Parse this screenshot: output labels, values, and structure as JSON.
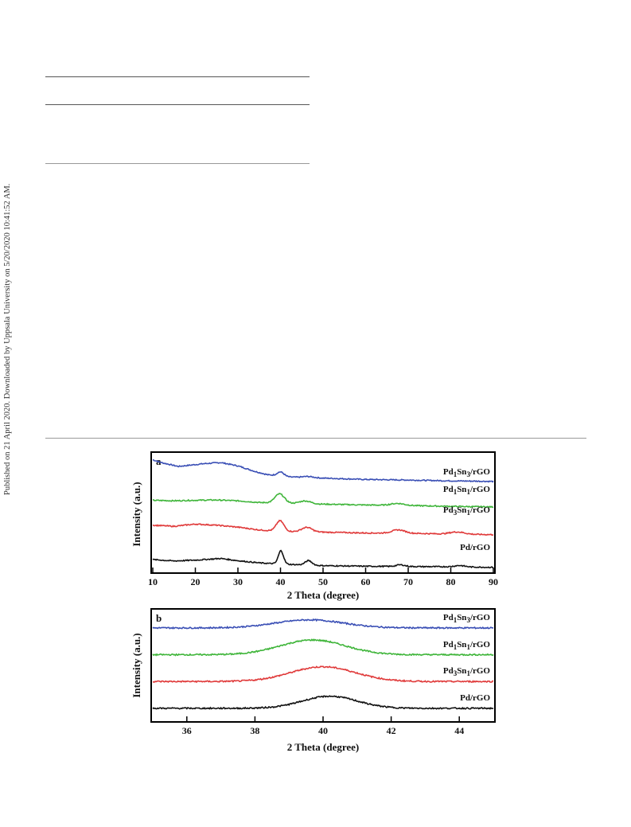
{
  "side_note": "Published on 21 April 2020. Downloaded by Uppsala University on 5/20/2020 10:41:52 AM.",
  "figure": {
    "panel_a": {
      "label": "a"
    },
    "panel_b": {
      "label": "b"
    }
  },
  "chart_data": [
    {
      "type": "line",
      "panel": "a",
      "xlabel": "2 Theta (degree)",
      "ylabel": "Intensity (a.u.)",
      "xlim": [
        10,
        90
      ],
      "xticks": [
        10,
        20,
        30,
        40,
        50,
        60,
        70,
        80,
        90
      ],
      "grid": false,
      "series": [
        {
          "name": "Pd1Sn3/rGO",
          "label_main": [
            "Pd",
            "1",
            "Sn",
            "3",
            "/rGO"
          ],
          "color": "#3a4fb5",
          "offset": 3.0,
          "peaks": [
            [
              40.0,
              0.15,
              0.8
            ],
            [
              46.5,
              0.04,
              1.2
            ]
          ],
          "base_x": [
            10,
            12,
            16,
            22,
            26,
            30,
            34,
            37,
            42,
            50,
            60,
            70,
            80,
            90
          ],
          "base_y": [
            0.98,
            0.88,
            0.74,
            0.84,
            0.88,
            0.76,
            0.56,
            0.44,
            0.36,
            0.32,
            0.27,
            0.25,
            0.22,
            0.2
          ]
        },
        {
          "name": "Pd1Sn1/rGO",
          "label_main": [
            "Pd",
            "1",
            "Sn",
            "1",
            "/rGO"
          ],
          "color": "#3fb53a",
          "offset": 2.0,
          "peaks": [
            [
              39.8,
              0.33,
              1.1
            ],
            [
              45.8,
              0.1,
              1.3
            ],
            [
              67.5,
              0.07,
              1.6
            ]
          ],
          "base_x": [
            10,
            15,
            20,
            25,
            30,
            35,
            40,
            50,
            60,
            70,
            80,
            90
          ],
          "base_y": [
            0.52,
            0.5,
            0.52,
            0.53,
            0.5,
            0.44,
            0.42,
            0.38,
            0.35,
            0.33,
            0.3,
            0.28
          ]
        },
        {
          "name": "Pd3Sn1/rGO",
          "label_main": [
            "Pd",
            "3",
            "Sn",
            "1",
            "/rGO"
          ],
          "color": "#e03a3a",
          "offset": 1.0,
          "peaks": [
            [
              39.9,
              0.38,
              0.9
            ],
            [
              46.2,
              0.16,
              1.2
            ],
            [
              67.7,
              0.12,
              1.5
            ],
            [
              81.5,
              0.08,
              1.7
            ]
          ],
          "base_x": [
            10,
            15,
            20,
            25,
            30,
            35,
            40,
            50,
            60,
            70,
            80,
            90
          ],
          "base_y": [
            0.62,
            0.58,
            0.66,
            0.62,
            0.55,
            0.45,
            0.4,
            0.37,
            0.34,
            0.33,
            0.3,
            0.28
          ]
        },
        {
          "name": "Pd/rGO",
          "label_main": [
            "Pd/rGO"
          ],
          "color": "#111111",
          "offset": 0.0,
          "peaks": [
            [
              40.1,
              0.48,
              0.6
            ],
            [
              46.6,
              0.16,
              0.8
            ],
            [
              68.2,
              0.06,
              1.0
            ],
            [
              82.1,
              0.05,
              1.2
            ]
          ],
          "base_x": [
            10,
            15,
            20,
            26,
            30,
            35,
            40,
            50,
            60,
            70,
            80,
            90
          ],
          "base_y": [
            0.38,
            0.33,
            0.36,
            0.42,
            0.34,
            0.26,
            0.22,
            0.16,
            0.14,
            0.13,
            0.12,
            0.1
          ]
        }
      ]
    },
    {
      "type": "line",
      "panel": "b",
      "xlabel": "2 Theta (degree)",
      "ylabel": "Intensity (a.u.)",
      "xlim": [
        35,
        45
      ],
      "xticks": [
        36,
        38,
        40,
        42,
        44
      ],
      "grid": false,
      "series": [
        {
          "name": "Pd1Sn3/rGO",
          "label_main": [
            "Pd",
            "1",
            "Sn",
            "3",
            "/rGO"
          ],
          "color": "#3a4fb5",
          "offset": 3.0,
          "peak": [
            39.6,
            0.3,
            1.0
          ]
        },
        {
          "name": "Pd1Sn1/rGO",
          "label_main": [
            "Pd",
            "1",
            "Sn",
            "1",
            "/rGO"
          ],
          "color": "#3fb53a",
          "offset": 2.0,
          "peak": [
            39.7,
            0.55,
            0.95
          ]
        },
        {
          "name": "Pd3Sn1/rGO",
          "label_main": [
            "Pd",
            "3",
            "Sn",
            "1",
            "/rGO"
          ],
          "color": "#e03a3a",
          "offset": 1.0,
          "peak": [
            40.0,
            0.55,
            0.95
          ]
        },
        {
          "name": "Pd/rGO",
          "label_main": [
            "Pd/rGO"
          ],
          "color": "#111111",
          "offset": 0.0,
          "peak": [
            40.2,
            0.45,
            0.8
          ]
        }
      ]
    }
  ]
}
